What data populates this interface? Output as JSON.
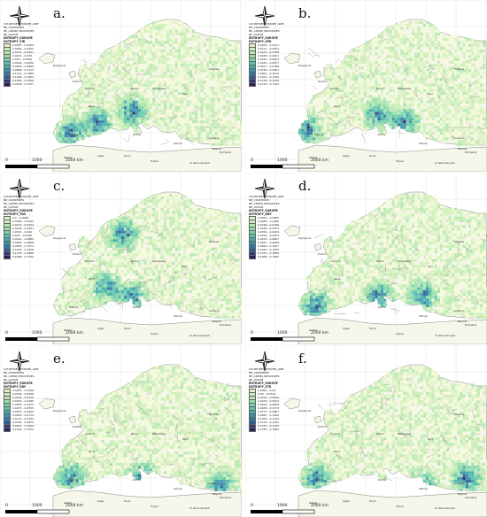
{
  "panels": [
    {
      "label": "a.",
      "layer_title": "ENTROPY_EUROPE",
      "layer_sub": "ENTROPY_FIR",
      "legend": [
        "0.0007 - 0.0062",
        "0.0062 - 0.0152",
        "0.0152 - 0.0221",
        "0.0221 - 0.033",
        "0.033 - 0.0504",
        "0.0504 - 0.0639",
        "0.0639 - 0.0868",
        "0.0868 - 0.1114",
        "0.1114 - 0.1369",
        "0.1369 - 0.1654",
        "0.1654 - 0.2169",
        "0.2169 - 0.7037"
      ]
    },
    {
      "label": "b.",
      "layer_title": "ENTROPY_EUROPE",
      "layer_sub": "ENTROPY_SPR",
      "legend": [
        "0.0001 - 0.0111",
        "0.0111 - 0.0223",
        "0.0223 - 0.0338",
        "0.0338 - 0.0451",
        "0.0451 - 0.0563",
        "0.0563 - 0.0677",
        "0.0677 - 0.0789",
        "0.0789 - 0.0901",
        "0.0901 - 0.1014",
        "0.1014 - 0.1126",
        "0.1126 - 0.1239",
        "0.1239 - 0.7761"
      ]
    },
    {
      "label": "c.",
      "layer_title": "ENTROPY_EUROPE",
      "layer_sub": "ENTROPY_PAS",
      "legend": [
        "0.0 - 0.0086",
        "0.0086 - 0.0152",
        "0.0152 - 0.0232",
        "0.0232 - 0.0321",
        "0.0321 - 0.042",
        "0.042 - 0.0542",
        "0.0542 - 0.0685",
        "0.0685 - 0.0858",
        "0.0858 - 0.1074",
        "0.1074 - 0.1378",
        "0.1378 - 0.1868",
        "0.1868 - 0.7332"
      ]
    },
    {
      "label": "d.",
      "layer_title": "ENTROPY_EUROPE",
      "layer_sub": "ENTROPY_DBY",
      "legend": [
        "0.0002 - 0.0085",
        "0.0085 - 0.0166",
        "0.0166 - 0.0246",
        "0.0246 - 0.0331",
        "0.0331 - 0.0424",
        "0.0424 - 0.0533",
        "0.0533 - 0.0667",
        "0.0667 - 0.0828",
        "0.0828 - 0.1027",
        "0.1027 - 0.1333",
        "0.1333 - 0.1856",
        "0.1856 - 0.7362"
      ]
    },
    {
      "label": "e.",
      "layer_title": "ENTROPY_EUROPE",
      "layer_sub": "ENTROPY_EDY",
      "legend": [
        "0.0005 - 0.0156",
        "0.0156 - 0.0236",
        "0.0236 - 0.0316",
        "0.0316 - 0.0395",
        "0.0395 - 0.0475",
        "0.0475 - 0.0555",
        "0.0555 - 0.0635",
        "0.0635 - 0.0714",
        "0.0714 - 0.0794",
        "0.0794 - 0.0874",
        "0.0874 - 0.1004",
        "0.1004 - 0.7033"
      ]
    },
    {
      "label": "f.",
      "layer_title": "ENTROPY_EUROPE",
      "layer_sub": "ENTROPY_STR",
      "legend": [
        "0.0001 - 0.02",
        "0.02 - 0.0314",
        "0.0314 - 0.0429",
        "0.0429 - 0.0543",
        "0.0543 - 0.0658",
        "0.0658 - 0.0773",
        "0.0773 - 0.0887",
        "0.0887 - 0.1002",
        "0.1002 - 0.1116",
        "0.1116 - 0.1231",
        "0.1231 - 0.1345",
        "0.1345 - 0.7462"
      ]
    }
  ],
  "layers": [
    "COUNTRIES_EUROPE_LINE",
    "NE_COUNTRIES",
    "NE_ADMIN_PROVINCES",
    "NE_OCEAN"
  ],
  "scale": {
    "zero": "0",
    "mid": "1000",
    "end": "2000 km"
  },
  "places": [
    "Reykjavik",
    "Dublin",
    "London",
    "Paris",
    "Madrid",
    "Roma",
    "Berlin",
    "Warszawa",
    "Kyiv",
    "Moskva",
    "Athina",
    "Ankara",
    "Tunis",
    "Alger",
    "Rabat",
    "Tripoli",
    "Al Iskandariyah",
    "Dimashq",
    "Bayrut"
  ],
  "colors": {
    "ramp": [
      "#f4f9d8",
      "#e1f3c6",
      "#cdeeb8",
      "#b6e8b0",
      "#98dfac",
      "#78d3aa",
      "#5cc3ac",
      "#43acae",
      "#3492ad",
      "#2d77a5",
      "#2b5b96",
      "#2d3a7a",
      "#2a1e5a"
    ],
    "land": "#f6f7ea",
    "sea": "#ffffff",
    "border": "#7f8a7a"
  },
  "icons": {
    "north_arrow": "north-arrow-icon"
  }
}
